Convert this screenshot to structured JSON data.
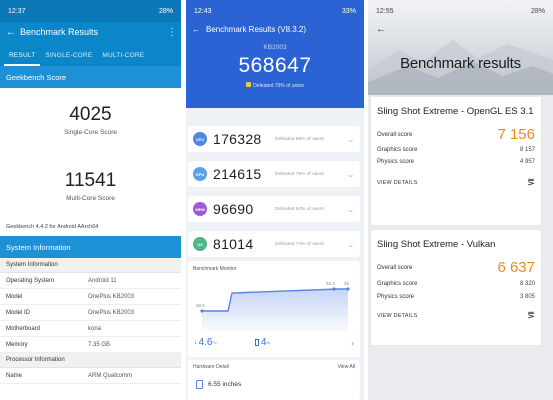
{
  "geekbench": {
    "status": {
      "time": "12:37",
      "battery": "28%"
    },
    "app_title": "Benchmark Results",
    "tabs": [
      "RESULT",
      "SINGLE-CORE",
      "MULTI-CORE"
    ],
    "section_score": "Geekbench Score",
    "single_core": {
      "value": "4025",
      "label": "Single-Core Score"
    },
    "multi_core": {
      "value": "11541",
      "label": "Multi-Core Score"
    },
    "version_note": "Geekbench 4.4.2 for Android AArch64",
    "section_sysinfo": "System Information",
    "group_system": "System Information",
    "rows": [
      {
        "k": "Operating System",
        "v": "Android 11"
      },
      {
        "k": "Model",
        "v": "OnePlus KB2003"
      },
      {
        "k": "Model ID",
        "v": "OnePlus KB2003"
      },
      {
        "k": "Motherboard",
        "v": "kona"
      },
      {
        "k": "Memory",
        "v": "7.35 GB"
      }
    ],
    "group_processor": "Processor Information",
    "proc_rows": [
      {
        "k": "Name",
        "v": "ARM Qualcomm"
      }
    ]
  },
  "antutu": {
    "status": {
      "time": "12:43",
      "battery": "33%"
    },
    "app_title": "Benchmark Results (V8.3.2)",
    "model": "KB2003",
    "total": "568647",
    "defeated": "Defeated 75% of users",
    "cards": [
      {
        "badge": "CPU",
        "value": "176328",
        "defeated": "Defeated 89% of users",
        "color": "#4f86e8"
      },
      {
        "badge": "GPU",
        "value": "214615",
        "defeated": "Defeated 79% of users",
        "color": "#5aa2e6"
      },
      {
        "badge": "MEM",
        "value": "96690",
        "defeated": "Defeated 53% of users",
        "color": "#9b5bd6"
      },
      {
        "badge": "UX",
        "value": "81014",
        "defeated": "Defeated 74% of users",
        "color": "#4fb58a"
      }
    ],
    "monitor_title": "Benchmark Monitor",
    "temp_low": "4.6",
    "temp_rise": "4",
    "chart_labels": {
      "start": "30.6",
      "p1": "35.2",
      "p2": "35"
    },
    "hw_title": "Hardware Detail",
    "hw_more": "View All",
    "hw_row": "6.55 inches"
  },
  "mark3d": {
    "status": {
      "time": "12:55",
      "battery": "28%"
    },
    "title": "Benchmark results",
    "results": [
      {
        "name": "Sling Shot Extreme - OpenGL ES 3.1",
        "overall_label": "Overall score",
        "overall": "7 156",
        "graphics_label": "Graphics score",
        "graphics": "8 157",
        "physics_label": "Physics score",
        "physics": "4 957",
        "details": "VIEW DETAILS"
      },
      {
        "name": "Sling Shot Extreme - Vulkan",
        "overall_label": "Overall score",
        "overall": "6 637",
        "graphics_label": "Graphics score",
        "graphics": "8 320",
        "physics_label": "Physics score",
        "physics": "3 805",
        "details": "VIEW DETAILS"
      }
    ]
  }
}
